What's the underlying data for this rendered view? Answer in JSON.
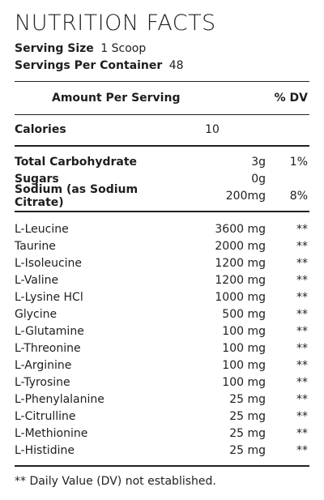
{
  "title": "NUTRITION FACTS",
  "serving": {
    "size_label": "Serving Size",
    "size_value": "1 Scoop",
    "per_container_label": "Servings Per Container",
    "per_container_value": "48"
  },
  "header": {
    "amount_label": "Amount Per Serving",
    "dv_label": "% DV"
  },
  "calories": {
    "label": "Calories",
    "value": "10"
  },
  "macros": [
    {
      "name": "Total Carbohydrate",
      "amount": "3g",
      "dv": "1%"
    },
    {
      "name": "Sugars",
      "amount": "0g",
      "dv": ""
    },
    {
      "name": "Sodium (as Sodium Citrate)",
      "amount": "200mg",
      "dv": "8%"
    }
  ],
  "aminos": [
    {
      "name": "L-Leucine",
      "amount": "3600 mg",
      "dv": "**"
    },
    {
      "name": "Taurine",
      "amount": "2000 mg",
      "dv": "**"
    },
    {
      "name": "L-Isoleucine",
      "amount": "1200 mg",
      "dv": "**"
    },
    {
      "name": "L-Valine",
      "amount": "1200 mg",
      "dv": "**"
    },
    {
      "name": "L-Lysine HCl",
      "amount": "1000 mg",
      "dv": "**"
    },
    {
      "name": "Glycine",
      "amount": "500 mg",
      "dv": "**"
    },
    {
      "name": "L-Glutamine",
      "amount": "100 mg",
      "dv": "**"
    },
    {
      "name": "L-Threonine",
      "amount": "100 mg",
      "dv": "**"
    },
    {
      "name": "L-Arginine",
      "amount": "100 mg",
      "dv": "**"
    },
    {
      "name": "L-Tyrosine",
      "amount": "100 mg",
      "dv": "**"
    },
    {
      "name": "L-Phenylalanine",
      "amount": "25 mg",
      "dv": "**"
    },
    {
      "name": "L-Citrulline",
      "amount": "25 mg",
      "dv": "**"
    },
    {
      "name": "L-Methionine",
      "amount": "25 mg",
      "dv": "**"
    },
    {
      "name": "L-Histidine",
      "amount": "25 mg",
      "dv": "**"
    }
  ],
  "footnote": "** Daily Value (DV) not established."
}
